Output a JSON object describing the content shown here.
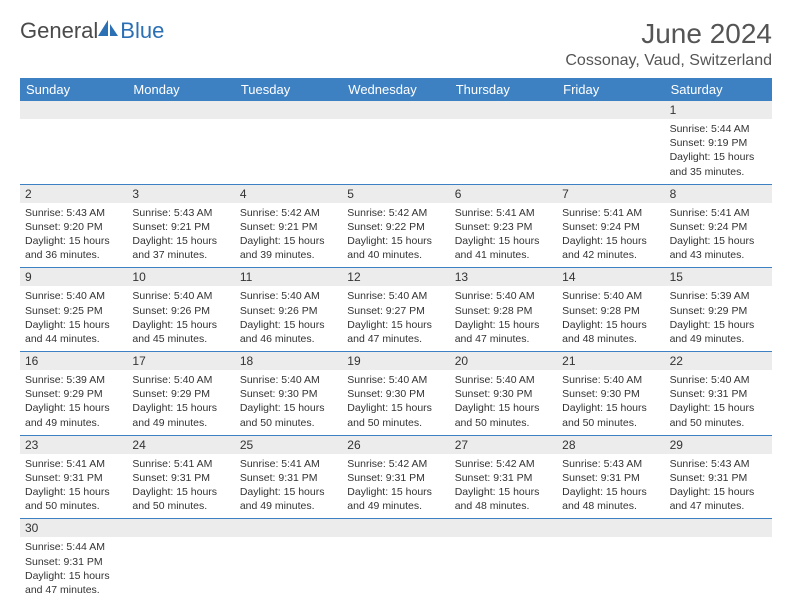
{
  "logo": {
    "dark": "General",
    "blue": "Blue"
  },
  "title": "June 2024",
  "location": "Cossonay, Vaud, Switzerland",
  "colors": {
    "header_bg": "#3d81c3",
    "header_text": "#ffffff",
    "num_bg": "#ececec",
    "border": "#3d81c3",
    "text": "#333333",
    "logo_dark": "#4a4a4a",
    "logo_blue": "#2b6fb5"
  },
  "day_names": [
    "Sunday",
    "Monday",
    "Tuesday",
    "Wednesday",
    "Thursday",
    "Friday",
    "Saturday"
  ],
  "weeks": [
    [
      null,
      null,
      null,
      null,
      null,
      null,
      {
        "n": "1",
        "sr": "5:44 AM",
        "ss": "9:19 PM",
        "dl": "15 hours and 35 minutes."
      }
    ],
    [
      {
        "n": "2",
        "sr": "5:43 AM",
        "ss": "9:20 PM",
        "dl": "15 hours and 36 minutes."
      },
      {
        "n": "3",
        "sr": "5:43 AM",
        "ss": "9:21 PM",
        "dl": "15 hours and 37 minutes."
      },
      {
        "n": "4",
        "sr": "5:42 AM",
        "ss": "9:21 PM",
        "dl": "15 hours and 39 minutes."
      },
      {
        "n": "5",
        "sr": "5:42 AM",
        "ss": "9:22 PM",
        "dl": "15 hours and 40 minutes."
      },
      {
        "n": "6",
        "sr": "5:41 AM",
        "ss": "9:23 PM",
        "dl": "15 hours and 41 minutes."
      },
      {
        "n": "7",
        "sr": "5:41 AM",
        "ss": "9:24 PM",
        "dl": "15 hours and 42 minutes."
      },
      {
        "n": "8",
        "sr": "5:41 AM",
        "ss": "9:24 PM",
        "dl": "15 hours and 43 minutes."
      }
    ],
    [
      {
        "n": "9",
        "sr": "5:40 AM",
        "ss": "9:25 PM",
        "dl": "15 hours and 44 minutes."
      },
      {
        "n": "10",
        "sr": "5:40 AM",
        "ss": "9:26 PM",
        "dl": "15 hours and 45 minutes."
      },
      {
        "n": "11",
        "sr": "5:40 AM",
        "ss": "9:26 PM",
        "dl": "15 hours and 46 minutes."
      },
      {
        "n": "12",
        "sr": "5:40 AM",
        "ss": "9:27 PM",
        "dl": "15 hours and 47 minutes."
      },
      {
        "n": "13",
        "sr": "5:40 AM",
        "ss": "9:28 PM",
        "dl": "15 hours and 47 minutes."
      },
      {
        "n": "14",
        "sr": "5:40 AM",
        "ss": "9:28 PM",
        "dl": "15 hours and 48 minutes."
      },
      {
        "n": "15",
        "sr": "5:39 AM",
        "ss": "9:29 PM",
        "dl": "15 hours and 49 minutes."
      }
    ],
    [
      {
        "n": "16",
        "sr": "5:39 AM",
        "ss": "9:29 PM",
        "dl": "15 hours and 49 minutes."
      },
      {
        "n": "17",
        "sr": "5:40 AM",
        "ss": "9:29 PM",
        "dl": "15 hours and 49 minutes."
      },
      {
        "n": "18",
        "sr": "5:40 AM",
        "ss": "9:30 PM",
        "dl": "15 hours and 50 minutes."
      },
      {
        "n": "19",
        "sr": "5:40 AM",
        "ss": "9:30 PM",
        "dl": "15 hours and 50 minutes."
      },
      {
        "n": "20",
        "sr": "5:40 AM",
        "ss": "9:30 PM",
        "dl": "15 hours and 50 minutes."
      },
      {
        "n": "21",
        "sr": "5:40 AM",
        "ss": "9:30 PM",
        "dl": "15 hours and 50 minutes."
      },
      {
        "n": "22",
        "sr": "5:40 AM",
        "ss": "9:31 PM",
        "dl": "15 hours and 50 minutes."
      }
    ],
    [
      {
        "n": "23",
        "sr": "5:41 AM",
        "ss": "9:31 PM",
        "dl": "15 hours and 50 minutes."
      },
      {
        "n": "24",
        "sr": "5:41 AM",
        "ss": "9:31 PM",
        "dl": "15 hours and 50 minutes."
      },
      {
        "n": "25",
        "sr": "5:41 AM",
        "ss": "9:31 PM",
        "dl": "15 hours and 49 minutes."
      },
      {
        "n": "26",
        "sr": "5:42 AM",
        "ss": "9:31 PM",
        "dl": "15 hours and 49 minutes."
      },
      {
        "n": "27",
        "sr": "5:42 AM",
        "ss": "9:31 PM",
        "dl": "15 hours and 48 minutes."
      },
      {
        "n": "28",
        "sr": "5:43 AM",
        "ss": "9:31 PM",
        "dl": "15 hours and 48 minutes."
      },
      {
        "n": "29",
        "sr": "5:43 AM",
        "ss": "9:31 PM",
        "dl": "15 hours and 47 minutes."
      }
    ],
    [
      {
        "n": "30",
        "sr": "5:44 AM",
        "ss": "9:31 PM",
        "dl": "15 hours and 47 minutes."
      },
      null,
      null,
      null,
      null,
      null,
      null
    ]
  ],
  "labels": {
    "sunrise": "Sunrise:",
    "sunset": "Sunset:",
    "daylight": "Daylight:"
  }
}
